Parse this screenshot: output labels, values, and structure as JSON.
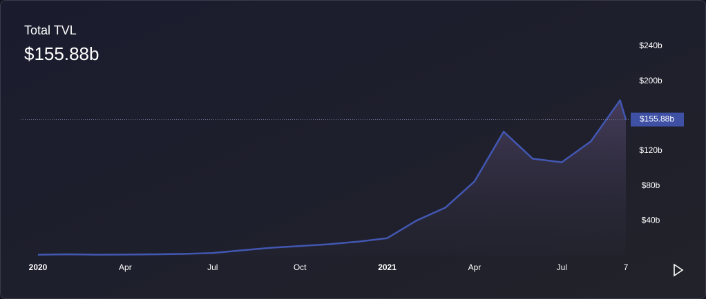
{
  "chart_data": {
    "type": "area",
    "title": "Total TVL",
    "current_value": 155.88,
    "current_value_label": "$155.88b",
    "color": "#4257b2",
    "x": [
      "2020-01",
      "2020-02",
      "2020-03",
      "2020-04",
      "2020-05",
      "2020-06",
      "2020-07",
      "2020-08",
      "2020-09",
      "2020-10",
      "2020-11",
      "2020-12",
      "2021-01",
      "2021-02",
      "2021-03",
      "2021-04",
      "2021-05",
      "2021-06",
      "2021-07",
      "2021-08",
      "2021-09",
      "2021-09-07"
    ],
    "values": [
      1,
      1.5,
      1,
      1.2,
      1.5,
      2,
      3,
      6,
      9,
      11,
      13,
      16,
      20,
      40,
      55,
      85,
      142,
      111,
      107,
      131,
      178,
      155.88
    ],
    "xlim": [
      "2020-01",
      "2021-09-07"
    ],
    "xticks": [
      {
        "value": "2020-01",
        "label": "2020"
      },
      {
        "value": "2020-04",
        "label": "Apr"
      },
      {
        "value": "2020-07",
        "label": "Jul"
      },
      {
        "value": "2020-10",
        "label": "Oct"
      },
      {
        "value": "2021-01",
        "label": "2021"
      },
      {
        "value": "2021-04",
        "label": "Apr"
      },
      {
        "value": "2021-07",
        "label": "Jul"
      },
      {
        "value": "2021-09-07",
        "label": "7"
      }
    ],
    "ylim": [
      0,
      240
    ],
    "yticks": [
      {
        "value": 40,
        "label": "$40b"
      },
      {
        "value": 80,
        "label": "$80b"
      },
      {
        "value": 120,
        "label": "$120b"
      },
      {
        "value": 200,
        "label": "$200b"
      },
      {
        "value": 240,
        "label": "$240b"
      }
    ]
  }
}
